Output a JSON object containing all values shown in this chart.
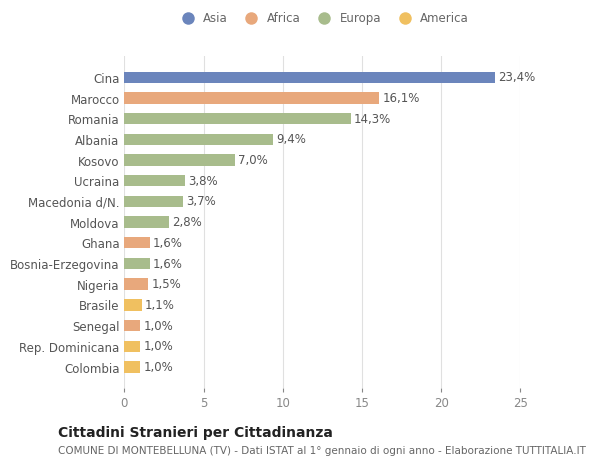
{
  "categories": [
    "Cina",
    "Marocco",
    "Romania",
    "Albania",
    "Kosovo",
    "Ucraina",
    "Macedonia d/N.",
    "Moldova",
    "Ghana",
    "Bosnia-Erzegovina",
    "Nigeria",
    "Brasile",
    "Senegal",
    "Rep. Dominicana",
    "Colombia"
  ],
  "values": [
    23.4,
    16.1,
    14.3,
    9.4,
    7.0,
    3.8,
    3.7,
    2.8,
    1.6,
    1.6,
    1.5,
    1.1,
    1.0,
    1.0,
    1.0
  ],
  "labels": [
    "23,4%",
    "16,1%",
    "14,3%",
    "9,4%",
    "7,0%",
    "3,8%",
    "3,7%",
    "2,8%",
    "1,6%",
    "1,6%",
    "1,5%",
    "1,1%",
    "1,0%",
    "1,0%",
    "1,0%"
  ],
  "continents": [
    "Asia",
    "Africa",
    "Europa",
    "Europa",
    "Europa",
    "Europa",
    "Europa",
    "Europa",
    "Africa",
    "Europa",
    "Africa",
    "America",
    "Africa",
    "America",
    "America"
  ],
  "continent_colors": {
    "Asia": "#6b85bc",
    "Africa": "#e8a87c",
    "Europa": "#a8bc8c",
    "America": "#f0c060"
  },
  "legend_order": [
    "Asia",
    "Africa",
    "Europa",
    "America"
  ],
  "title": "Cittadini Stranieri per Cittadinanza",
  "subtitle": "COMUNE DI MONTEBELLUNA (TV) - Dati ISTAT al 1° gennaio di ogni anno - Elaborazione TUTTITALIA.IT",
  "xlim": [
    0,
    25
  ],
  "xticks": [
    0,
    5,
    10,
    15,
    20,
    25
  ],
  "bg_color": "#ffffff",
  "grid_color": "#e0e0e0",
  "bar_height": 0.55,
  "label_fontsize": 8.5,
  "tick_fontsize": 8.5,
  "title_fontsize": 10,
  "subtitle_fontsize": 7.5
}
